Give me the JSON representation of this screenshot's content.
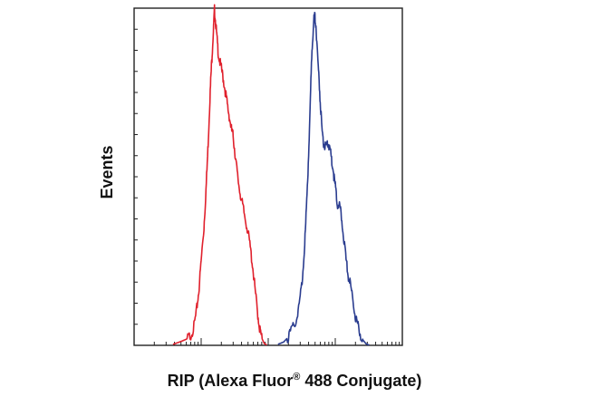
{
  "chart_data": {
    "type": "line",
    "title": "",
    "xlabel": "RIP (Alexa Fluor",
    "xlabel_sup": "®",
    "xlabel_suffix": " 488 Conjugate)",
    "ylabel": "Events",
    "x_scale": "log",
    "x_range": [
      10,
      100000
    ],
    "y_range": [
      0,
      100
    ],
    "grid": false,
    "series": [
      {
        "color": "#e0202c",
        "points": [
          [
            38,
            0.3
          ],
          [
            45,
            0.8
          ],
          [
            52,
            1.3
          ],
          [
            60,
            1.8
          ],
          [
            70,
            3.0
          ],
          [
            78,
            5.5
          ],
          [
            85,
            10
          ],
          [
            92,
            16
          ],
          [
            100,
            25
          ],
          [
            110,
            35
          ],
          [
            118,
            46
          ],
          [
            126,
            58
          ],
          [
            133,
            70
          ],
          [
            140,
            80
          ],
          [
            147,
            88
          ],
          [
            153,
            94
          ],
          [
            158,
            99.5
          ],
          [
            164,
            96
          ],
          [
            172,
            91
          ],
          [
            182,
            86
          ],
          [
            195,
            83
          ],
          [
            210,
            80
          ],
          [
            226,
            76
          ],
          [
            243,
            72
          ],
          [
            262,
            68
          ],
          [
            283,
            64
          ],
          [
            300,
            62
          ],
          [
            320,
            57
          ],
          [
            345,
            51
          ],
          [
            375,
            46
          ],
          [
            410,
            42
          ],
          [
            450,
            38
          ],
          [
            495,
            34
          ],
          [
            540,
            29
          ],
          [
            590,
            23
          ],
          [
            640,
            16
          ],
          [
            690,
            10
          ],
          [
            745,
            5
          ],
          [
            800,
            2.2
          ],
          [
            870,
            0.6
          ],
          [
            950,
            0.1
          ]
        ]
      },
      {
        "color": "#2a3c8f",
        "points": [
          [
            1400,
            0.3
          ],
          [
            1700,
            1.0
          ],
          [
            2000,
            2.5
          ],
          [
            2300,
            5.0
          ],
          [
            2600,
            7.5
          ],
          [
            2900,
            12
          ],
          [
            3200,
            19
          ],
          [
            3500,
            30
          ],
          [
            3750,
            42
          ],
          [
            4000,
            57
          ],
          [
            4250,
            73
          ],
          [
            4500,
            88
          ],
          [
            4750,
            96
          ],
          [
            4950,
            97.5
          ],
          [
            5150,
            95
          ],
          [
            5450,
            86
          ],
          [
            5800,
            77
          ],
          [
            6150,
            68
          ],
          [
            6500,
            61
          ],
          [
            6900,
            59
          ],
          [
            7300,
            58.5
          ],
          [
            7750,
            60
          ],
          [
            8200,
            59
          ],
          [
            8700,
            56
          ],
          [
            9300,
            52
          ],
          [
            10000,
            47
          ],
          [
            10700,
            42
          ],
          [
            11400,
            41.5
          ],
          [
            12200,
            39
          ],
          [
            13200,
            33
          ],
          [
            14300,
            26
          ],
          [
            15500,
            21
          ],
          [
            16800,
            18
          ],
          [
            18200,
            14
          ],
          [
            19800,
            9
          ],
          [
            21500,
            6
          ],
          [
            23500,
            3.5
          ],
          [
            26000,
            1.5
          ],
          [
            29000,
            0.4
          ],
          [
            32000,
            0.1
          ]
        ]
      }
    ]
  }
}
